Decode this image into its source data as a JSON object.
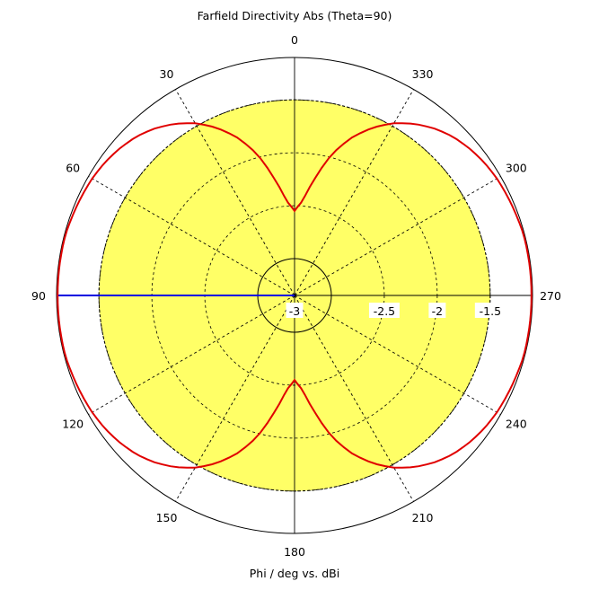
{
  "chart_data": {
    "type": "polar",
    "title": "Farfield Directivity Abs (Theta=90)",
    "xlabel": "Phi / deg vs. dBi",
    "angle_direction": "counterclockwise",
    "angle_zero": "top",
    "angle_ticks": [
      0,
      30,
      60,
      90,
      120,
      150,
      180,
      210,
      240,
      270,
      300,
      330
    ],
    "angle_tick_labels": [
      "0",
      "30",
      "60",
      "90",
      "120",
      "150",
      "180",
      "210",
      "240",
      "270",
      "300",
      "330"
    ],
    "radial_range": [
      -3,
      -1.1
    ],
    "radial_ticks": [
      -3,
      -2.5,
      -2,
      -1.5
    ],
    "radial_tick_labels": [
      "-3",
      "-2.5",
      "-2",
      "-1.5"
    ],
    "grid": true,
    "reference_level_dbi": -1.5,
    "fill_color": "#ffff66",
    "series": [
      {
        "color": "#e00000",
        "phi": [
          0,
          5,
          10,
          15,
          20,
          25,
          30,
          35,
          40,
          45,
          50,
          55,
          60,
          65,
          70,
          75,
          80,
          85,
          90
        ],
        "dbi": [
          -2.55,
          -2.45,
          -2.22,
          -1.96,
          -1.76,
          -1.6,
          -1.47,
          -1.37,
          -1.29,
          -1.23,
          -1.19,
          -1.16,
          -1.14,
          -1.13,
          -1.12,
          -1.11,
          -1.11,
          -1.11,
          -1.11
        ],
        "symmetry": "mirrored about 0-180 and 90-270"
      }
    ],
    "marker": {
      "color": "#0000e0",
      "phi": 90
    }
  }
}
